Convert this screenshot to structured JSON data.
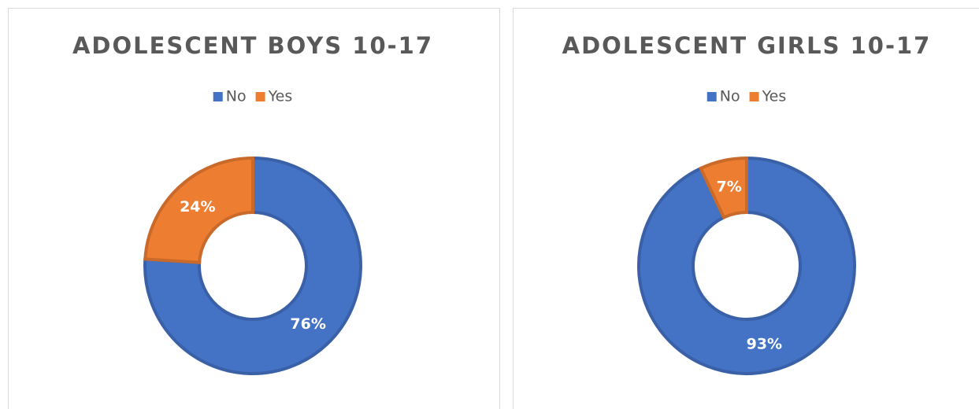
{
  "chart_data": [
    {
      "type": "donut",
      "title": "ADOLESCENT BOYS 10-17",
      "categories": [
        "No",
        "Yes"
      ],
      "values": [
        76,
        24
      ],
      "value_labels": [
        "76%",
        "24%"
      ],
      "colors": [
        "#4472c4",
        "#ed7d31"
      ],
      "legend": "top"
    },
    {
      "type": "donut",
      "title": "ADOLESCENT GIRLS 10-17",
      "categories": [
        "No",
        "Yes"
      ],
      "values": [
        93,
        7
      ],
      "value_labels": [
        "93%",
        "7%"
      ],
      "colors": [
        "#4472c4",
        "#ed7d31"
      ],
      "legend": "top"
    }
  ]
}
